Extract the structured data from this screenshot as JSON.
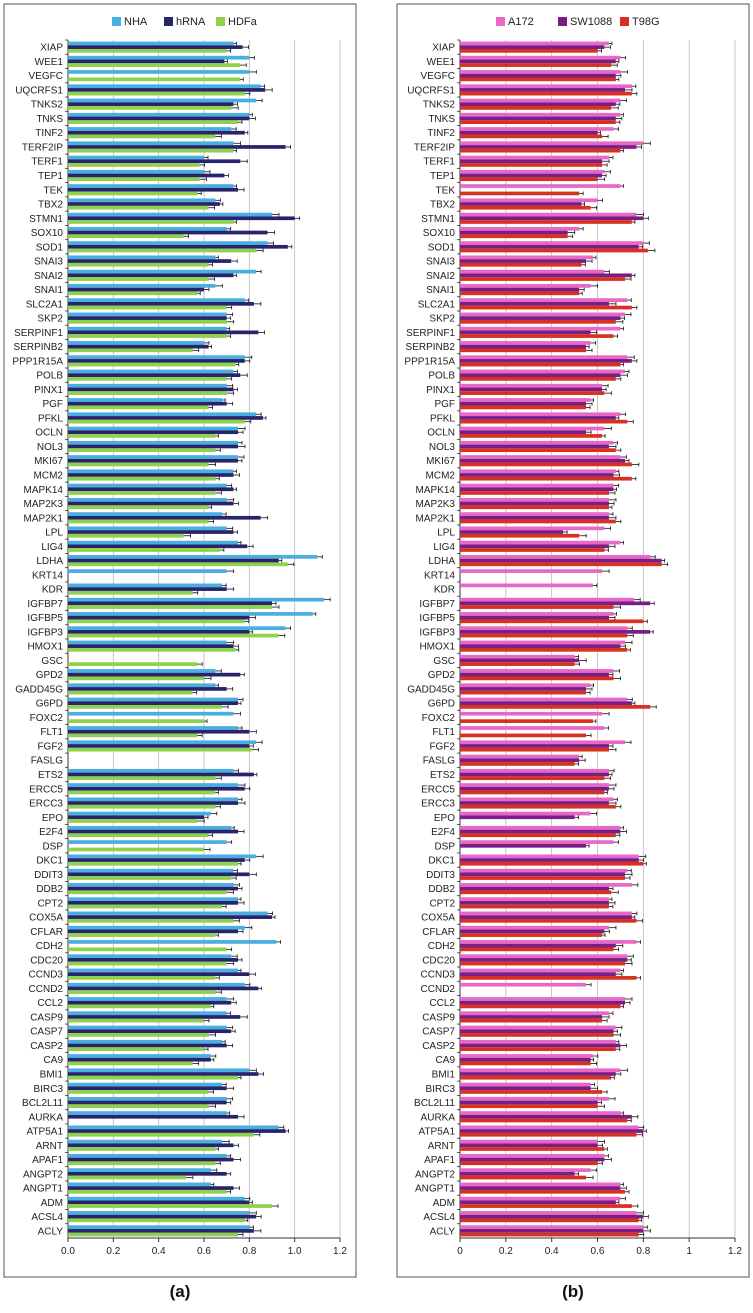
{
  "chart_data": [
    {
      "panel": "(a)",
      "type": "bar",
      "orientation": "horizontal",
      "legend_position": "top",
      "grid": true,
      "xlim": [
        0,
        1.2
      ],
      "x_ticks": [
        "0.0",
        "0.2",
        "0.4",
        "0.6",
        "0.8",
        "1.0",
        "1.2"
      ],
      "categories": [
        "XIAP",
        "WEE1",
        "VEGFC",
        "UQCRFS1",
        "TNKS2",
        "TNKS",
        "TINF2",
        "TERF2IP",
        "TERF1",
        "TEP1",
        "TEK",
        "TBX2",
        "STMN1",
        "SOX10",
        "SOD1",
        "SNAI3",
        "SNAI2",
        "SNAI1",
        "SLC2A1",
        "SKP2",
        "SERPINF1",
        "SERPINB2",
        "PPP1R15A",
        "POLB",
        "PINX1",
        "PGF",
        "PFKL",
        "OCLN",
        "NOL3",
        "MKI67",
        "MCM2",
        "MAPK14",
        "MAP2K3",
        "MAP2K1",
        "LPL",
        "LIG4",
        "LDHA",
        "KRT14",
        "KDR",
        "IGFBP7",
        "IGFBP5",
        "IGFBP3",
        "HMOX1",
        "GSC",
        "GPD2",
        "GADD45G",
        "G6PD",
        "FOXC2",
        "FLT1",
        "FGF2",
        "FASLG",
        "ETS2",
        "ERCC5",
        "ERCC3",
        "EPO",
        "E2F4",
        "DSP",
        "DKC1",
        "DDIT3",
        "DDB2",
        "CPT2",
        "COX5A",
        "CFLAR",
        "CDH2",
        "CDC20",
        "CCND3",
        "CCND2",
        "CCL2",
        "CASP9",
        "CASP7",
        "CASP2",
        "CA9",
        "BMI1",
        "BIRC3",
        "BCL2L11",
        "AURKA",
        "ATP5A1",
        "ARNT",
        "APAF1",
        "ANGPT2",
        "ANGPT1",
        "ADM",
        "ACSL4",
        "ACLY"
      ],
      "series": [
        {
          "name": "NHA",
          "color": "#4aaee0",
          "values": [
            0.73,
            0.8,
            0.8,
            0.85,
            0.83,
            0.8,
            0.72,
            0.73,
            0.6,
            0.6,
            0.73,
            0.65,
            0.9,
            0.7,
            0.88,
            0.65,
            0.83,
            0.65,
            0.78,
            0.7,
            0.7,
            0.6,
            0.78,
            0.73,
            0.7,
            0.68,
            0.83,
            0.75,
            0.75,
            0.75,
            0.73,
            0.7,
            0.7,
            0.68,
            0.7,
            0.75,
            1.1,
            0.7,
            0.68,
            1.13,
            1.08,
            0.96,
            0.7,
            0.0,
            0.65,
            0.65,
            0.75,
            0.73,
            0.75,
            0.83,
            0.0,
            0.73,
            0.75,
            0.75,
            0.63,
            0.72,
            0.7,
            0.83,
            0.73,
            0.73,
            0.75,
            0.88,
            0.78,
            0.92,
            0.72,
            0.75,
            0.78,
            0.7,
            0.7,
            0.7,
            0.68,
            0.63,
            0.8,
            0.68,
            0.7,
            0.7,
            0.93,
            0.68,
            0.7,
            0.63,
            0.63,
            0.78,
            0.8,
            0.8
          ]
        },
        {
          "name": "hRNA",
          "color": "#26256b",
          "values": [
            0.77,
            0.69,
            0.0,
            0.87,
            0.73,
            0.8,
            0.78,
            0.96,
            0.76,
            0.69,
            0.75,
            0.67,
            1.0,
            0.88,
            0.97,
            0.72,
            0.73,
            0.6,
            0.82,
            0.7,
            0.84,
            0.62,
            0.78,
            0.76,
            0.73,
            0.7,
            0.86,
            0.75,
            0.75,
            0.75,
            0.73,
            0.73,
            0.73,
            0.85,
            0.73,
            0.79,
            0.93,
            0.0,
            0.7,
            0.9,
            0.8,
            0.8,
            0.73,
            0.0,
            0.76,
            0.7,
            0.75,
            0.0,
            0.8,
            0.8,
            0.0,
            0.82,
            0.78,
            0.75,
            0.6,
            0.75,
            0.0,
            0.78,
            0.8,
            0.75,
            0.75,
            0.9,
            0.75,
            0.0,
            0.75,
            0.8,
            0.84,
            0.72,
            0.76,
            0.72,
            0.7,
            0.63,
            0.84,
            0.7,
            0.7,
            0.75,
            0.96,
            0.73,
            0.73,
            0.7,
            0.73,
            0.8,
            0.83,
            0.82
          ]
        },
        {
          "name": "HDFa",
          "color": "#8ed14b",
          "values": [
            0.7,
            0.76,
            0.76,
            0.78,
            0.72,
            0.75,
            0.65,
            0.73,
            0.58,
            0.58,
            0.57,
            0.62,
            0.73,
            0.51,
            0.83,
            0.62,
            0.62,
            0.57,
            0.7,
            0.7,
            0.7,
            0.55,
            0.74,
            0.7,
            0.7,
            0.62,
            0.78,
            0.65,
            0.65,
            0.62,
            0.65,
            0.65,
            0.62,
            0.62,
            0.51,
            0.67,
            0.97,
            0.0,
            0.55,
            0.9,
            0.78,
            0.93,
            0.74,
            0.57,
            0.6,
            0.55,
            0.68,
            0.6,
            0.57,
            0.81,
            0.0,
            0.65,
            0.65,
            0.65,
            0.57,
            0.62,
            0.6,
            0.75,
            0.72,
            0.7,
            0.68,
            0.73,
            0.65,
            0.7,
            0.7,
            0.65,
            0.65,
            0.63,
            0.6,
            0.62,
            0.6,
            0.55,
            0.75,
            0.62,
            0.62,
            0.0,
            0.82,
            0.65,
            0.65,
            0.52,
            0.7,
            0.9,
            0.78,
            0.75
          ]
        }
      ]
    },
    {
      "panel": "(b)",
      "type": "bar",
      "orientation": "horizontal",
      "legend_position": "top",
      "grid": true,
      "xlim": [
        0,
        1.2
      ],
      "x_ticks": [
        "0",
        "0.2",
        "0.4",
        "0.6",
        "0.8",
        "1",
        "1.2"
      ],
      "categories": [
        "XIAP",
        "WEE1",
        "VEGFC",
        "UQCRFS1",
        "TNKS2",
        "TNKS",
        "TINF2",
        "TERF2IP",
        "TERF1",
        "TEP1",
        "TEK",
        "TBX2",
        "STMN1",
        "SOX10",
        "SOD1",
        "SNAI3",
        "SNAI2",
        "SNAI1",
        "SLC2A1",
        "SKP2",
        "SERPINF1",
        "SERPINB2",
        "PPP1R15A",
        "POLB",
        "PINX1",
        "PGF",
        "PFKL",
        "OCLN",
        "NOL3",
        "MKI67",
        "MCM2",
        "MAPK14",
        "MAP2K3",
        "MAP2K1",
        "LPL",
        "LIG4",
        "LDHA",
        "KRT14",
        "KDR",
        "IGFBP7",
        "IGFBP5",
        "IGFBP3",
        "HMOX1",
        "GSC",
        "GPD2",
        "GADD45G",
        "G6PD",
        "FOXC2",
        "FLT1",
        "FGF2",
        "FASLG",
        "ETS2",
        "ERCC5",
        "ERCC3",
        "EPO",
        "E2F4",
        "DSP",
        "DKC1",
        "DDIT3",
        "DDB2",
        "CPT2",
        "COX5A",
        "CFLAR",
        "CDH2",
        "CDC20",
        "CCND3",
        "CCND2",
        "CCL2",
        "CASP9",
        "CASP7",
        "CASP2",
        "CA9",
        "BMI1",
        "BIRC3",
        "BCL2L11",
        "AURKA",
        "ATP5A1",
        "ARNT",
        "APAF1",
        "ANGPT2",
        "ANGPT1",
        "ADM",
        "ACSL4",
        "ACLY"
      ],
      "series": [
        {
          "name": "A172",
          "color": "#e868c8",
          "values": [
            0.65,
            0.7,
            0.7,
            0.75,
            0.7,
            0.7,
            0.67,
            0.8,
            0.65,
            0.63,
            0.7,
            0.6,
            0.77,
            0.52,
            0.8,
            0.58,
            0.63,
            0.57,
            0.73,
            0.72,
            0.7,
            0.57,
            0.73,
            0.72,
            0.62,
            0.57,
            0.7,
            0.63,
            0.67,
            0.7,
            0.68,
            0.67,
            0.65,
            0.65,
            0.63,
            0.7,
            0.83,
            0.62,
            0.58,
            0.76,
            0.67,
            0.73,
            0.72,
            0.5,
            0.67,
            0.57,
            0.73,
            0.62,
            0.63,
            0.72,
            0.52,
            0.65,
            0.65,
            0.67,
            0.57,
            0.7,
            0.67,
            0.78,
            0.73,
            0.75,
            0.65,
            0.75,
            0.65,
            0.77,
            0.73,
            0.7,
            0.55,
            0.72,
            0.65,
            0.68,
            0.68,
            0.58,
            0.7,
            0.57,
            0.65,
            0.7,
            0.78,
            0.6,
            0.63,
            0.57,
            0.7,
            0.7,
            0.77,
            0.8
          ]
        },
        {
          "name": "SW1088",
          "color": "#7a1d85",
          "values": [
            0.63,
            0.68,
            0.68,
            0.72,
            0.68,
            0.68,
            0.6,
            0.77,
            0.62,
            0.62,
            0.0,
            0.53,
            0.8,
            0.47,
            0.78,
            0.55,
            0.75,
            0.52,
            0.65,
            0.7,
            0.57,
            0.55,
            0.75,
            0.7,
            0.62,
            0.55,
            0.68,
            0.55,
            0.65,
            0.72,
            0.67,
            0.67,
            0.65,
            0.65,
            0.45,
            0.65,
            0.88,
            0.0,
            0.0,
            0.83,
            0.65,
            0.83,
            0.7,
            0.52,
            0.65,
            0.55,
            0.75,
            0.0,
            0.0,
            0.65,
            0.52,
            0.65,
            0.65,
            0.65,
            0.5,
            0.7,
            0.55,
            0.78,
            0.72,
            0.65,
            0.65,
            0.75,
            0.63,
            0.68,
            0.73,
            0.68,
            0.0,
            0.72,
            0.62,
            0.67,
            0.7,
            0.57,
            0.68,
            0.57,
            0.6,
            0.75,
            0.8,
            0.6,
            0.63,
            0.5,
            0.7,
            0.68,
            0.8,
            0.8
          ]
        },
        {
          "name": "T98G",
          "color": "#d93020",
          "values": [
            0.6,
            0.66,
            0.68,
            0.75,
            0.66,
            0.68,
            0.62,
            0.7,
            0.62,
            0.6,
            0.52,
            0.57,
            0.75,
            0.47,
            0.82,
            0.53,
            0.72,
            0.52,
            0.75,
            0.68,
            0.67,
            0.55,
            0.7,
            0.68,
            0.63,
            0.55,
            0.73,
            0.62,
            0.68,
            0.75,
            0.75,
            0.65,
            0.65,
            0.68,
            0.52,
            0.63,
            0.88,
            0.0,
            0.0,
            0.67,
            0.8,
            0.73,
            0.73,
            0.5,
            0.67,
            0.55,
            0.83,
            0.58,
            0.55,
            0.65,
            0.5,
            0.63,
            0.63,
            0.68,
            0.0,
            0.68,
            0.0,
            0.8,
            0.72,
            0.66,
            0.65,
            0.77,
            0.62,
            0.67,
            0.72,
            0.77,
            0.0,
            0.7,
            0.62,
            0.67,
            0.68,
            0.57,
            0.66,
            0.62,
            0.6,
            0.73,
            0.77,
            0.63,
            0.6,
            0.55,
            0.72,
            0.75,
            0.78,
            0.78
          ]
        }
      ]
    }
  ]
}
